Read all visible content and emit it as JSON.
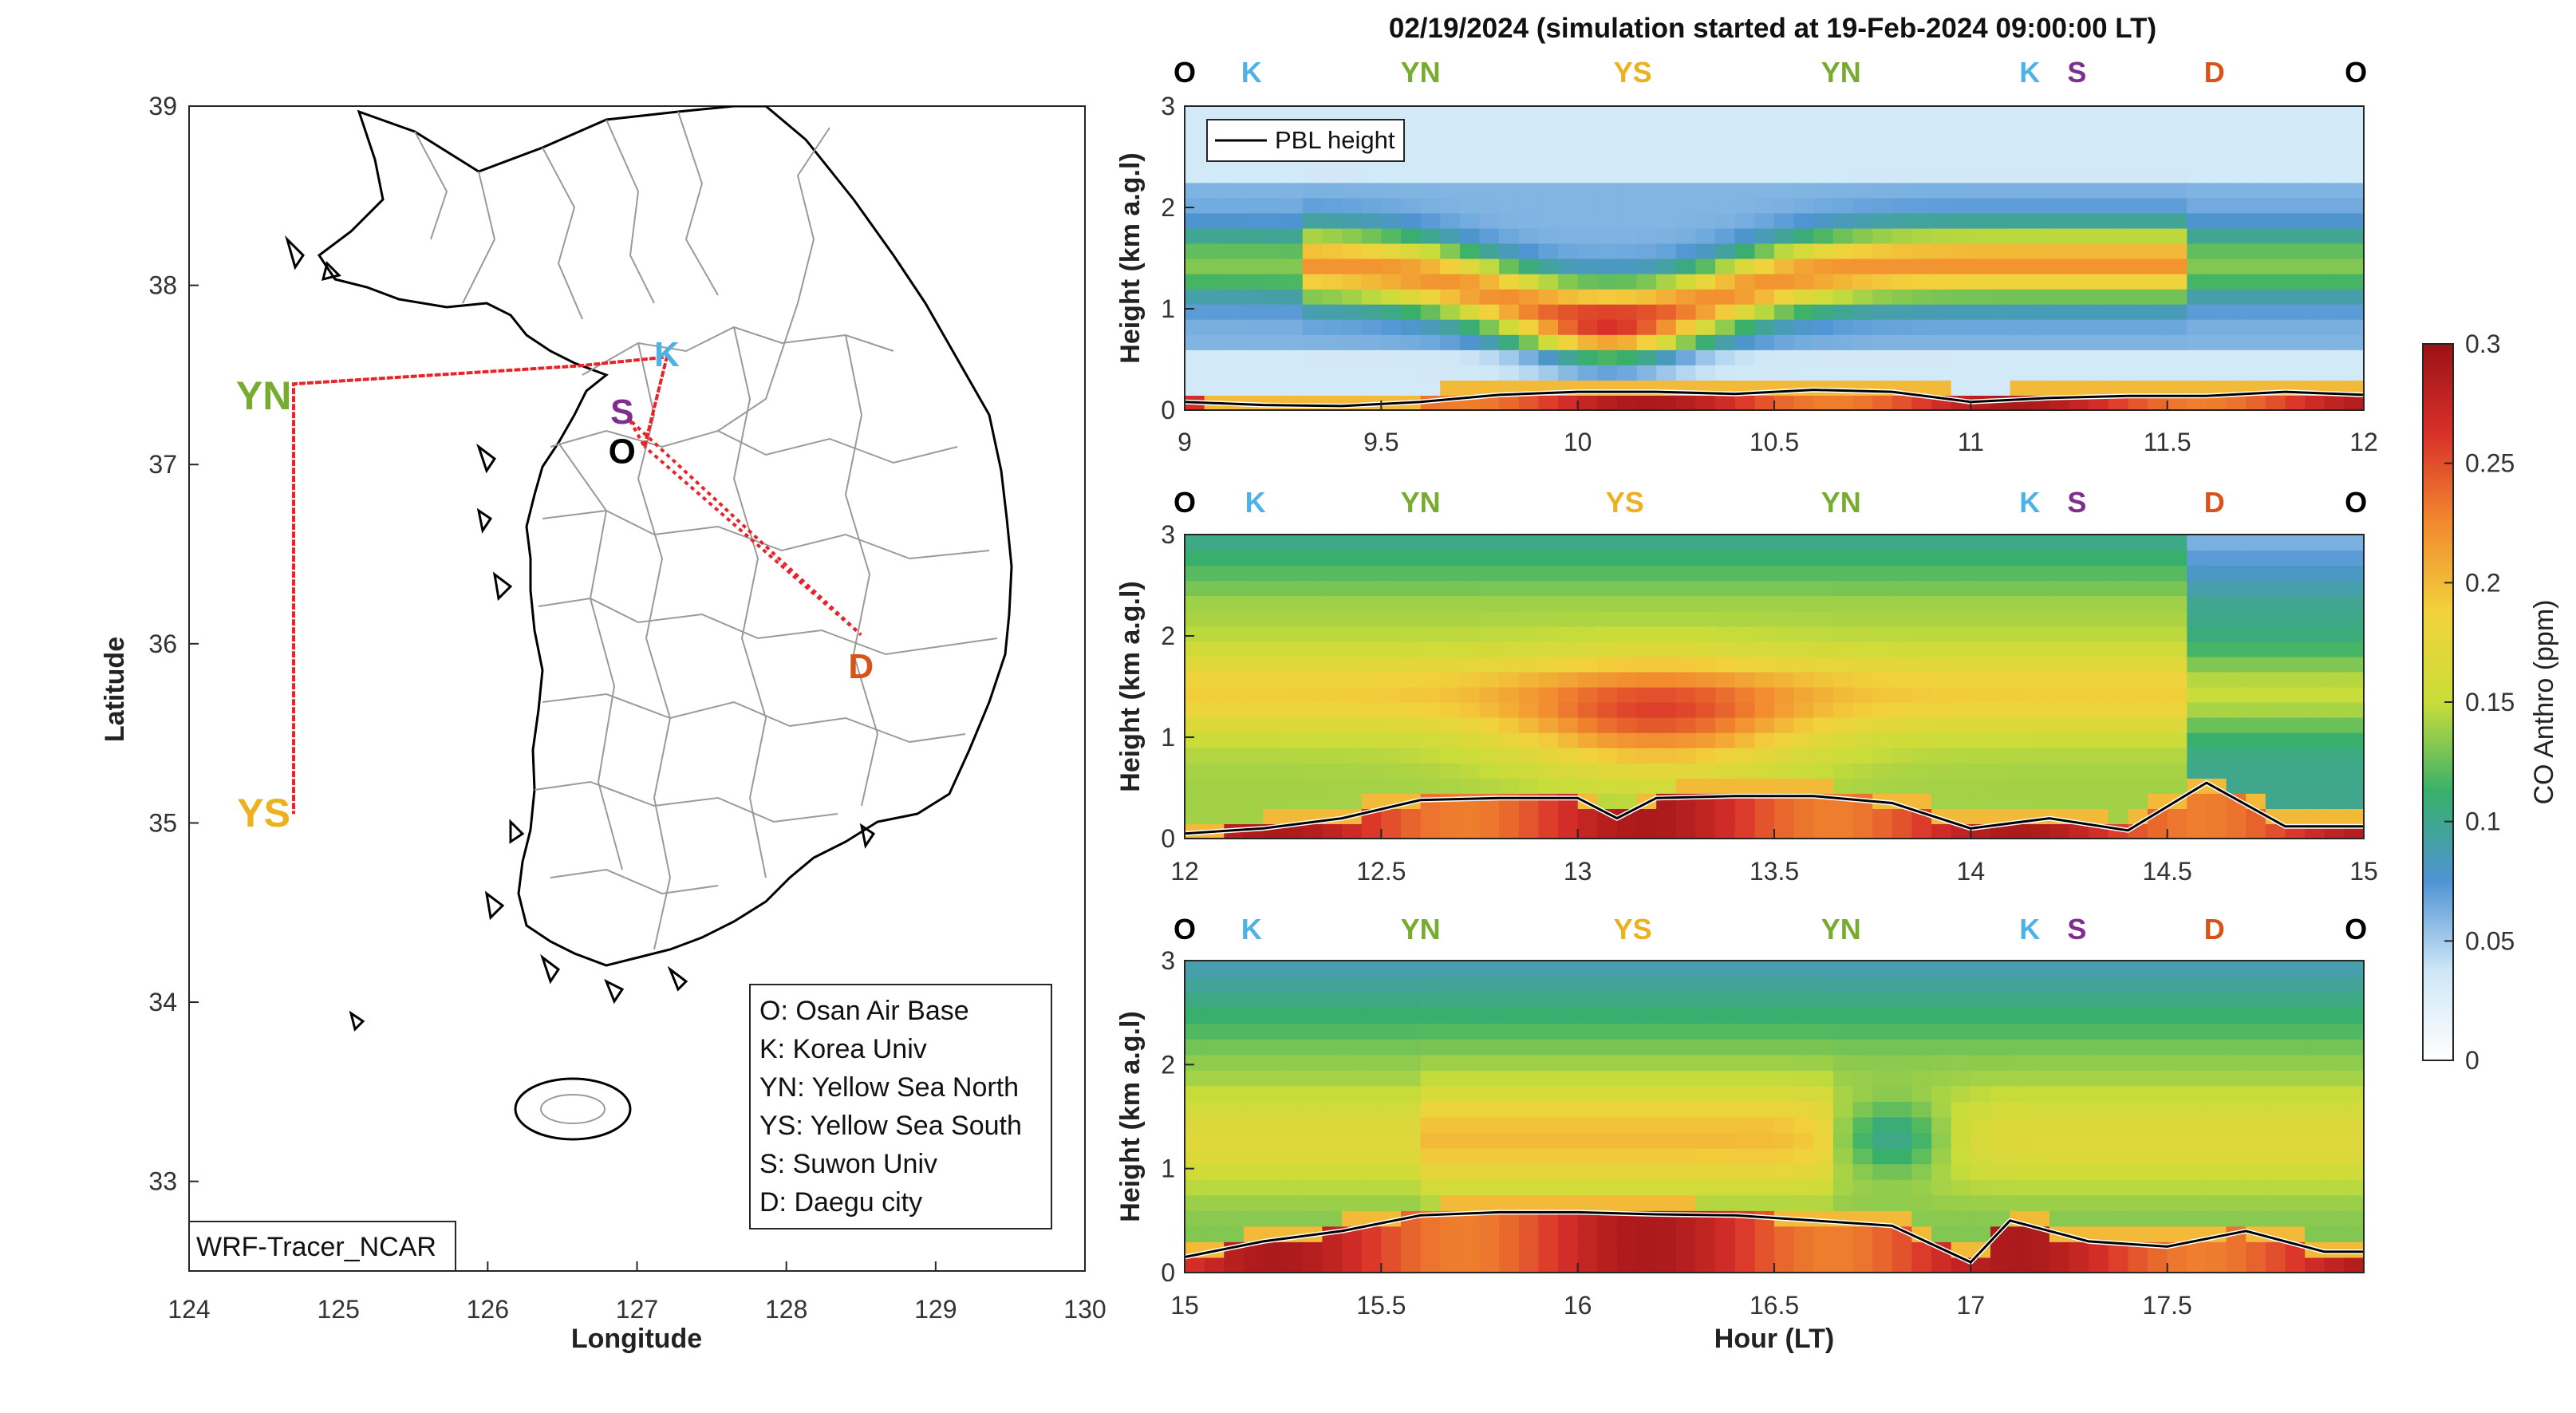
{
  "figure": {
    "title": "02/19/2024 (simulation started at 19-Feb-2024 09:00:00 LT)",
    "model_label": "WRF-Tracer_NCAR"
  },
  "map": {
    "xlabel": "Longitude",
    "ylabel": "Latitude",
    "xlim": [
      124,
      130
    ],
    "ylim": [
      32.5,
      39
    ],
    "xticks": [
      "124",
      "125",
      "126",
      "127",
      "128",
      "129",
      "130"
    ],
    "yticks": [
      "33",
      "34",
      "35",
      "36",
      "37",
      "38",
      "39"
    ],
    "sites": [
      {
        "code": "K",
        "lon": 127.2,
        "lat": 37.62,
        "color": "#4db3e6"
      },
      {
        "code": "S",
        "lon": 126.9,
        "lat": 37.3,
        "color": "#7e2f8e"
      },
      {
        "code": "O",
        "lon": 126.9,
        "lat": 37.08,
        "color": "#000000"
      },
      {
        "code": "YN",
        "lon": 124.5,
        "lat": 37.38,
        "color": "#77ac30"
      },
      {
        "code": "YS",
        "lon": 124.5,
        "lat": 35.05,
        "color": "#edb120"
      },
      {
        "code": "D",
        "lon": 128.5,
        "lat": 35.88,
        "color": "#d95319"
      }
    ],
    "flight_track": [
      [
        127.05,
        37.1
      ],
      [
        127.2,
        37.6
      ],
      [
        126.6,
        37.55
      ],
      [
        124.7,
        37.45
      ],
      [
        124.7,
        35.05
      ],
      [
        124.7,
        37.45
      ],
      [
        126.6,
        37.55
      ],
      [
        127.2,
        37.6
      ],
      [
        127.05,
        37.1
      ],
      [
        126.95,
        37.25
      ],
      [
        128.5,
        36.05
      ],
      [
        127.05,
        37.1
      ]
    ],
    "legend": [
      "O: Osan Air Base",
      "K: Korea Univ",
      "YN: Yellow Sea North",
      "YS: Yellow Sea South",
      "S: Suwon Univ",
      "D: Daegu city"
    ]
  },
  "chart_data": [
    {
      "type": "heatmap",
      "title": "02/19/2024 (simulation started at 19-Feb-2024 09:00:00 LT)",
      "xlabel": "",
      "ylabel": "Height (km a.g.l)",
      "xlim": [
        9,
        12
      ],
      "ylim": [
        0,
        3
      ],
      "xticks": [
        "9",
        "9.5",
        "10",
        "10.5",
        "11",
        "11.5",
        "12"
      ],
      "yticks": [
        "0",
        "1",
        "2",
        "3"
      ],
      "waypoints": [
        {
          "code": "O",
          "t": 9.0
        },
        {
          "code": "K",
          "t": 9.17
        },
        {
          "code": "YN",
          "t": 9.6
        },
        {
          "code": "YS",
          "t": 10.14
        },
        {
          "code": "YN",
          "t": 10.67
        },
        {
          "code": "K",
          "t": 11.15
        },
        {
          "code": "S",
          "t": 11.27
        },
        {
          "code": "D",
          "t": 11.62
        },
        {
          "code": "O",
          "t": 11.98
        }
      ],
      "series": [
        {
          "name": "PBL height",
          "x": [
            9.0,
            9.2,
            9.4,
            9.6,
            9.8,
            10.0,
            10.2,
            10.4,
            10.6,
            10.8,
            11.0,
            11.2,
            11.4,
            11.6,
            11.8,
            12.0
          ],
          "y": [
            0.08,
            0.05,
            0.04,
            0.08,
            0.15,
            0.18,
            0.18,
            0.16,
            0.2,
            0.18,
            0.08,
            0.12,
            0.14,
            0.14,
            0.18,
            0.15
          ]
        }
      ],
      "legend_position": "top-left"
    },
    {
      "type": "heatmap",
      "xlabel": "",
      "ylabel": "Height (km a.g.l)",
      "xlim": [
        12,
        15
      ],
      "ylim": [
        0,
        3
      ],
      "xticks": [
        "12",
        "12.5",
        "13",
        "13.5",
        "14",
        "14.5",
        "15"
      ],
      "yticks": [
        "0",
        "1",
        "2",
        "3"
      ],
      "waypoints": [
        {
          "code": "O",
          "t": 12.0
        },
        {
          "code": "K",
          "t": 12.18
        },
        {
          "code": "YN",
          "t": 12.6
        },
        {
          "code": "YS",
          "t": 13.12
        },
        {
          "code": "YN",
          "t": 13.67
        },
        {
          "code": "K",
          "t": 14.15
        },
        {
          "code": "S",
          "t": 14.27
        },
        {
          "code": "D",
          "t": 14.62
        },
        {
          "code": "O",
          "t": 14.98
        }
      ],
      "series": [
        {
          "name": "PBL height",
          "x": [
            12.0,
            12.2,
            12.4,
            12.6,
            12.8,
            13.0,
            13.1,
            13.2,
            13.4,
            13.6,
            13.8,
            14.0,
            14.2,
            14.4,
            14.6,
            14.8,
            15.0
          ],
          "y": [
            0.05,
            0.1,
            0.2,
            0.38,
            0.4,
            0.4,
            0.2,
            0.4,
            0.42,
            0.42,
            0.35,
            0.1,
            0.2,
            0.08,
            0.55,
            0.12,
            0.12
          ]
        }
      ]
    },
    {
      "type": "heatmap",
      "xlabel": "Hour (LT)",
      "ylabel": "Height (km a.g.l)",
      "xlim": [
        15,
        18
      ],
      "ylim": [
        0,
        3
      ],
      "xticks": [
        "15",
        "15.5",
        "16",
        "16.5",
        "17",
        "17.5"
      ],
      "yticks": [
        "0",
        "1",
        "2",
        "3"
      ],
      "waypoints": [
        {
          "code": "O",
          "t": 15.0
        },
        {
          "code": "K",
          "t": 15.17
        },
        {
          "code": "YN",
          "t": 15.6
        },
        {
          "code": "YS",
          "t": 16.14
        },
        {
          "code": "YN",
          "t": 16.67
        },
        {
          "code": "K",
          "t": 17.15
        },
        {
          "code": "S",
          "t": 17.27
        },
        {
          "code": "D",
          "t": 17.62
        },
        {
          "code": "O",
          "t": 17.98
        }
      ],
      "series": [
        {
          "name": "PBL height",
          "x": [
            15.0,
            15.2,
            15.4,
            15.6,
            15.8,
            16.0,
            16.2,
            16.4,
            16.6,
            16.8,
            17.0,
            17.1,
            17.3,
            17.5,
            17.7,
            17.9,
            18.0
          ],
          "y": [
            0.15,
            0.3,
            0.4,
            0.55,
            0.58,
            0.58,
            0.56,
            0.55,
            0.5,
            0.45,
            0.1,
            0.5,
            0.3,
            0.25,
            0.4,
            0.2,
            0.2
          ]
        }
      ]
    }
  ],
  "colorbar": {
    "label": "CO Anthro (ppm)",
    "range": [
      0,
      0.3
    ],
    "ticks": [
      "0",
      "0.05",
      "0.1",
      "0.15",
      "0.2",
      "0.25",
      "0.3"
    ],
    "stops": [
      "#ffffff",
      "#cfe7f7",
      "#4f94d4",
      "#38b06a",
      "#c9dd3a",
      "#f2d23c",
      "#f28a2f",
      "#d9302a",
      "#9b1216"
    ]
  }
}
